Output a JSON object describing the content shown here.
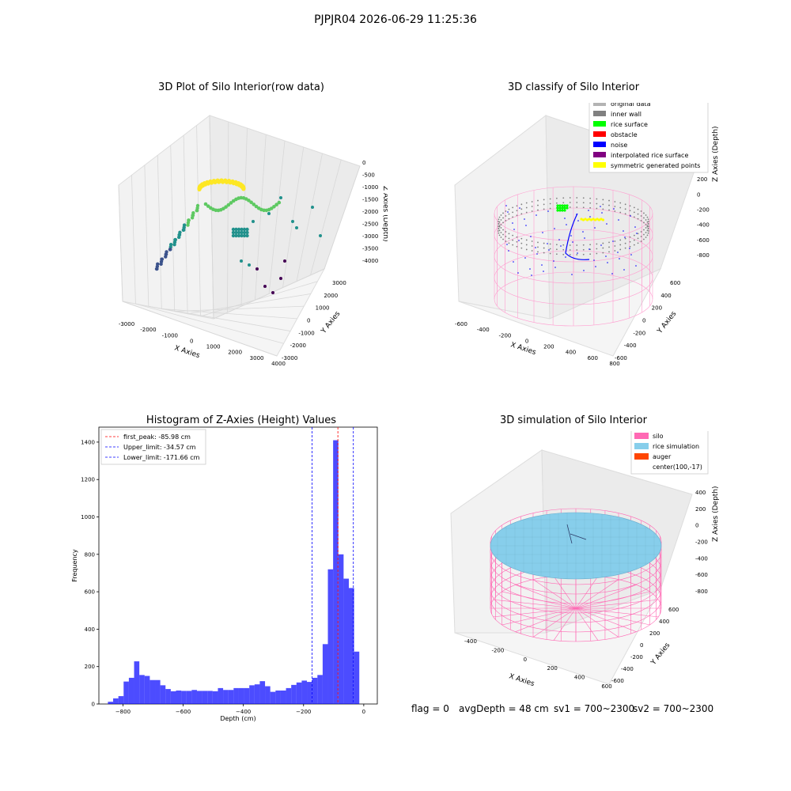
{
  "figure": {
    "suptitle": "PJPJR04 2026-06-29 11:25:36"
  },
  "status": {
    "flag": "flag = 0",
    "avg_depth": "avgDepth = 48 cm",
    "sv1": "sv1 = 700~2300",
    "sv2": "sv2 = 700~2300"
  },
  "chart_data": [
    {
      "type": "scatter",
      "projection": "3d",
      "title": "3D Plot of Silo Interior(row data)",
      "xlabel": "X Axies",
      "ylabel": "Y Axies",
      "zlabel": "Z Axies (Depth)",
      "xticks": [
        "-3000",
        "-2000",
        "-1000",
        "0",
        "1000",
        "2000",
        "3000",
        "4000"
      ],
      "yticks": [
        "-3000",
        "-2000",
        "-1000",
        "0",
        "1000",
        "2000",
        "3000"
      ],
      "zticks": [
        "0",
        "-500",
        "-1000",
        "-1500",
        "-2000",
        "-2500",
        "-3000",
        "-3500",
        "-4000"
      ],
      "colormap": "viridis"
    },
    {
      "type": "scatter",
      "projection": "3d",
      "title": "3D classify of Silo Interior",
      "xlabel": "X Axies",
      "ylabel": "Y Axies",
      "zlabel": "Z Axies (Depth)",
      "xticks": [
        "-600",
        "-400",
        "-200",
        "0",
        "200",
        "400",
        "600",
        "800"
      ],
      "yticks": [
        "-600",
        "-400",
        "-200",
        "0",
        "200",
        "400",
        "600"
      ],
      "zticks": [
        "400",
        "200",
        "0",
        "-200",
        "-400",
        "-600",
        "-800"
      ],
      "legend_position": "top-right",
      "legend": [
        {
          "label": "original data",
          "color": "#b3b3b3"
        },
        {
          "label": "inner wall",
          "color": "#808080"
        },
        {
          "label": "rice surface",
          "color": "#00ff00"
        },
        {
          "label": "obstacle",
          "color": "#ff0000"
        },
        {
          "label": "noise",
          "color": "#0000ff"
        },
        {
          "label": "interpolated rice surface",
          "color": "#800080"
        },
        {
          "label": "symmetric generated points",
          "color": "#ffff00"
        }
      ]
    },
    {
      "type": "bar",
      "title": "Histogram of Z-Axies (Height) Values",
      "xlabel": "Depth (cm)",
      "ylabel": "Frequency",
      "bar_color": "#0000ff",
      "xlim": [
        -880,
        45
      ],
      "ylim": [
        0,
        1480
      ],
      "xticks": [
        -800,
        -600,
        -400,
        -200,
        0
      ],
      "yticks": [
        0,
        200,
        400,
        600,
        800,
        1000,
        1200,
        1400
      ],
      "bin_width": 17.4,
      "bin_start": -850,
      "values": [
        12,
        30,
        42,
        120,
        140,
        228,
        155,
        150,
        128,
        128,
        100,
        80,
        68,
        72,
        70,
        70,
        75,
        70,
        70,
        70,
        68,
        85,
        75,
        75,
        85,
        85,
        85,
        100,
        105,
        122,
        95,
        65,
        72,
        72,
        85,
        102,
        115,
        125,
        118,
        140,
        155,
        320,
        720,
        1410,
        800,
        670,
        620,
        280
      ],
      "lines": [
        {
          "label": "first_peak: -85.98 cm",
          "x": -85.98,
          "color": "#ff0000"
        },
        {
          "label": "Upper_limit: -34.57 cm",
          "x": -34.57,
          "color": "#0000ff"
        },
        {
          "label": "Lower_limit: -171.66 cm",
          "x": -171.66,
          "color": "#0000ff"
        }
      ],
      "legend_position": "top-left"
    },
    {
      "type": "surface",
      "projection": "3d",
      "title": "3D simulation of Silo Interior",
      "xlabel": "X Axies",
      "ylabel": "Y Axies",
      "zlabel": "Z Axies (Depth)",
      "xticks": [
        "-400",
        "-200",
        "0",
        "200",
        "400",
        "600"
      ],
      "yticks": [
        "-600",
        "-400",
        "-200",
        "0",
        "200",
        "400",
        "600"
      ],
      "zticks": [
        "400",
        "200",
        "0",
        "-200",
        "-400",
        "-600",
        "-800"
      ],
      "legend_position": "top-right",
      "legend": [
        {
          "label": "silo",
          "color": "#ff69b4"
        },
        {
          "label": "rice simulation",
          "color": "#87ceeb"
        },
        {
          "label": "auger",
          "color": "#ff4500"
        },
        {
          "label": "center(100,-17)",
          "color": "#ffffff"
        }
      ]
    }
  ]
}
